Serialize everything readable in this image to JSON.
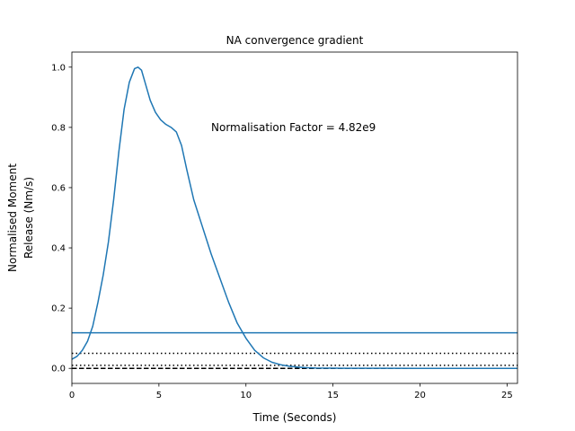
{
  "chart_data": {
    "type": "line",
    "title": "NA convergence gradient",
    "xlabel": "Time (Seconds)",
    "ylabel_lines": [
      "Normalised Moment",
      "Release (Nm/s)"
    ],
    "xlim": [
      0,
      25.6
    ],
    "ylim": [
      -0.05,
      1.05
    ],
    "x_ticks": [
      0,
      5,
      10,
      15,
      20,
      25
    ],
    "y_ticks": [
      0.0,
      0.2,
      0.4,
      0.6,
      0.8,
      1.0
    ],
    "x_tick_labels": [
      "0",
      "5",
      "10",
      "15",
      "20",
      "25"
    ],
    "y_tick_labels": [
      "0.0",
      "0.2",
      "0.4",
      "0.6",
      "0.8",
      "1.0"
    ],
    "annotation": {
      "text": "Normalisation Factor = 4.82e9",
      "x": 8.0,
      "y": 0.8
    },
    "series": [
      {
        "color": "#1f77b4",
        "x": [
          0.0,
          0.3,
          0.6,
          0.9,
          1.2,
          1.5,
          1.8,
          2.1,
          2.4,
          2.7,
          3.0,
          3.3,
          3.6,
          3.8,
          4.0,
          4.2,
          4.5,
          4.8,
          5.1,
          5.4,
          5.7,
          6.0,
          6.3,
          6.6,
          7.0,
          7.5,
          8.0,
          8.5,
          9.0,
          9.5,
          10.0,
          10.5,
          11.0,
          11.5,
          12.0,
          12.5,
          13.0,
          13.5,
          14.0,
          15.0,
          16.0,
          18.0,
          20.0,
          22.0,
          25.6
        ],
        "y": [
          0.03,
          0.04,
          0.06,
          0.09,
          0.14,
          0.22,
          0.31,
          0.42,
          0.56,
          0.72,
          0.86,
          0.95,
          0.995,
          1.0,
          0.99,
          0.95,
          0.89,
          0.85,
          0.825,
          0.81,
          0.8,
          0.785,
          0.74,
          0.66,
          0.56,
          0.47,
          0.38,
          0.3,
          0.22,
          0.15,
          0.1,
          0.06,
          0.035,
          0.02,
          0.012,
          0.007,
          0.004,
          0.002,
          0.001,
          0.0005,
          0.0003,
          0.0002,
          0.0001,
          0.0001,
          0.0
        ]
      }
    ],
    "reference_lines": [
      {
        "y": 0.118,
        "style": "solid",
        "color": "#1f77b4"
      },
      {
        "y": 0.05,
        "style": "dotted",
        "color": "#000000"
      },
      {
        "y": 0.01,
        "style": "dotted",
        "color": "#000000"
      },
      {
        "y": 0.0,
        "style": "dashed",
        "color": "#000000"
      }
    ],
    "grid": false,
    "legend": false
  }
}
